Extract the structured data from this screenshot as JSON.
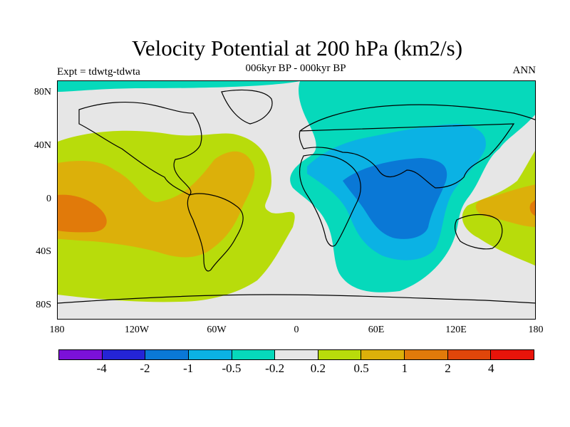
{
  "title": "Velocity Potential at 200 hPa (km2/s)",
  "subtitle": "006kyr BP - 000kyr BP",
  "left_label": "Expt = tdwtg-tdwta",
  "right_label": "ANN",
  "y_ticks": [
    "80N",
    "40N",
    "0",
    "40S",
    "80S"
  ],
  "x_ticks": [
    "180",
    "120W",
    "60W",
    "0",
    "60E",
    "120E",
    "180"
  ],
  "colorbar": {
    "colors": [
      "#7b11d8",
      "#2424d6",
      "#0a78d6",
      "#0bb2e4",
      "#06d9bb",
      "#e6e6e6",
      "#b8dc0b",
      "#dcb00a",
      "#e17a0a",
      "#e0460a",
      "#e8140a"
    ],
    "labels": [
      "-4",
      "-2",
      "-1",
      "-0.5",
      "-0.2",
      "0.2",
      "0.5",
      "1",
      "2",
      "4"
    ]
  }
}
